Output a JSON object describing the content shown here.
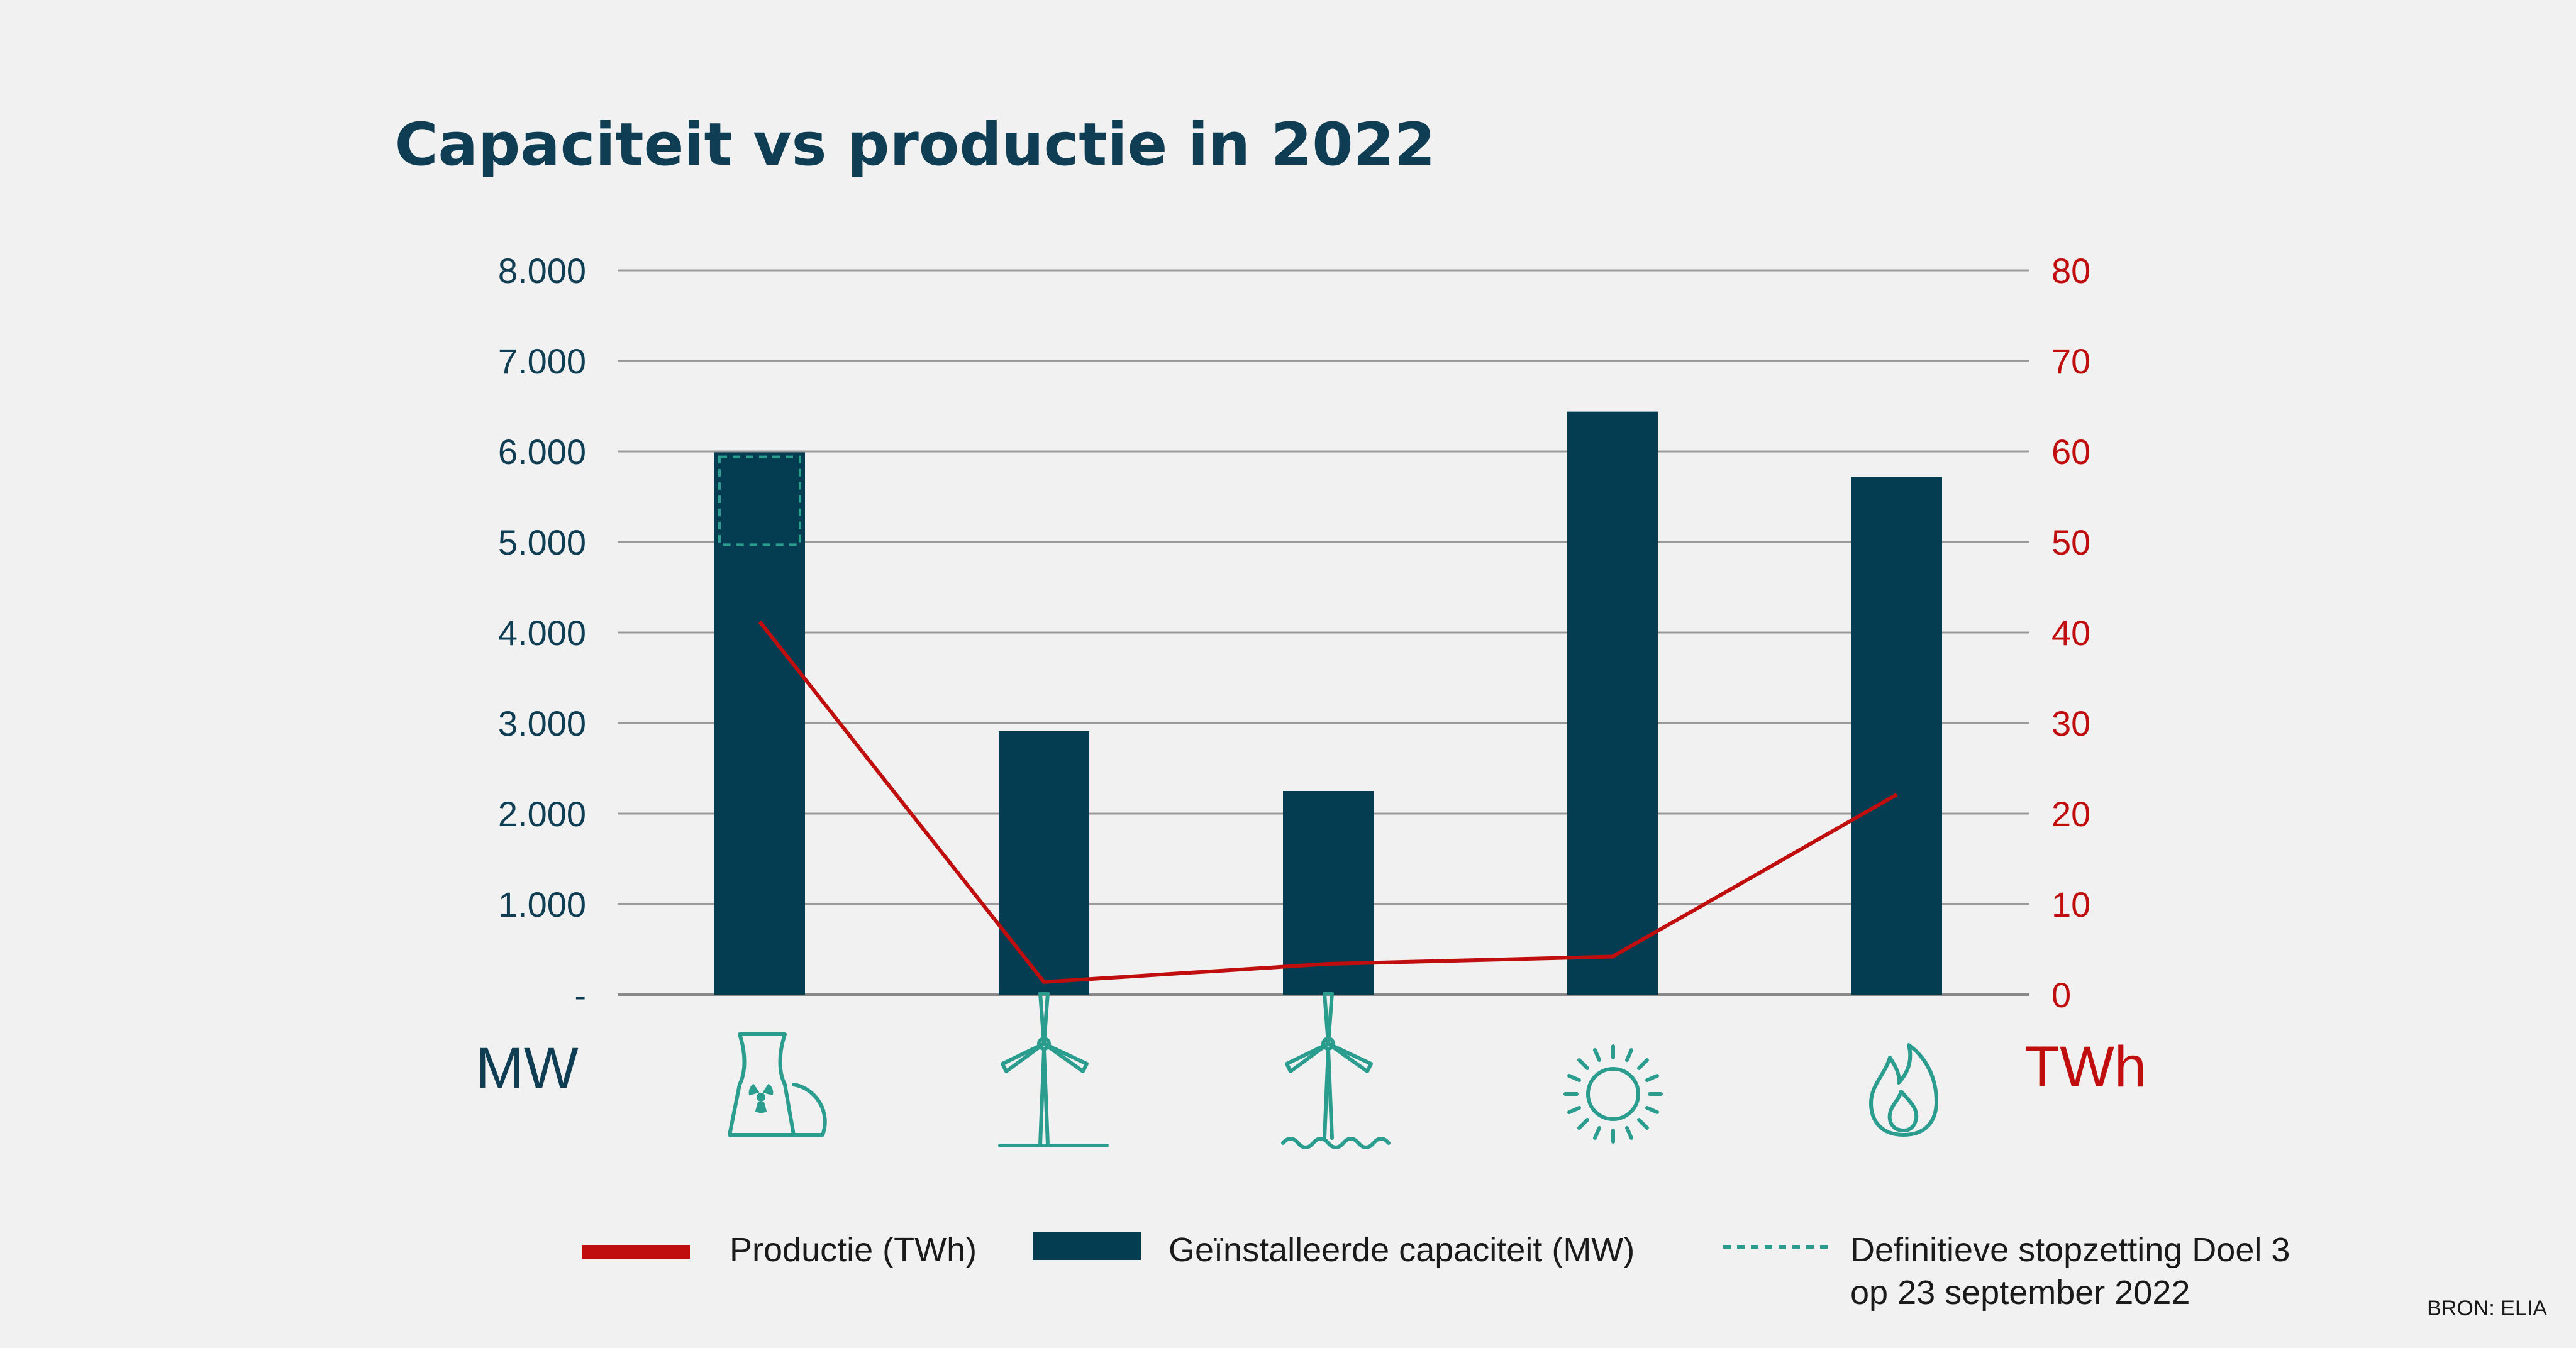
{
  "chart_data": {
    "type": "bar",
    "title": "Capaciteit vs productie in 2022",
    "categories": [
      "nuclear",
      "wind-onshore",
      "wind-offshore",
      "solar",
      "gas"
    ],
    "series": [
      {
        "name": "Geïnstalleerde capaciteit (MW)",
        "axis": "left",
        "kind": "bar",
        "color": "#043c51",
        "values": [
          5990,
          2910,
          2250,
          6440,
          5720
        ]
      },
      {
        "name": "Productie (TWh)",
        "axis": "right",
        "kind": "line",
        "color": "#c00d0d",
        "values": [
          41.2,
          1.4,
          3.4,
          4.2,
          22.1
        ]
      }
    ],
    "annotation": {
      "name": "Definitieve stopzetting Doel 3 op 23 september 2022",
      "category": "nuclear",
      "from": 4970,
      "to": 5940,
      "color": "#2a9d8f"
    },
    "y_left": {
      "unit": "MW",
      "range": [
        0,
        8000
      ],
      "ticks": [
        "-",
        "1.000",
        "2.000",
        "3.000",
        "4.000",
        "5.000",
        "6.000",
        "7.000",
        "8.000"
      ]
    },
    "y_right": {
      "unit": "TWh",
      "range": [
        0,
        80
      ],
      "ticks": [
        "0",
        "10",
        "20",
        "30",
        "40",
        "50",
        "60",
        "70",
        "80"
      ]
    },
    "grid": true,
    "legend_position": "bottom"
  },
  "icons": [
    "nuclear-plant-icon",
    "wind-turbine-icon",
    "offshore-wind-turbine-icon",
    "sun-icon",
    "flame-icon"
  ],
  "legend": {
    "production": "Productie (TWh)",
    "capacity": "Geïnstalleerde capaciteit (MW)",
    "shutdown_line1": "Definitieve stopzetting Doel 3",
    "shutdown_line2": "op 23 september 2022"
  },
  "source": "BRON: ELIA"
}
